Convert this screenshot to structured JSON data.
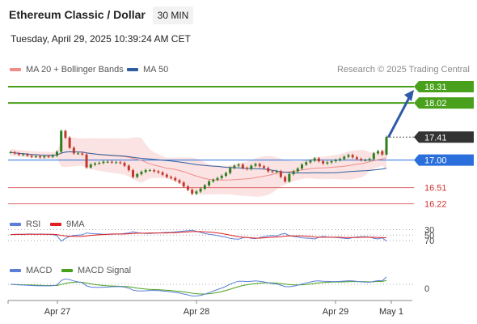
{
  "header": {
    "title": "Ethereum Classic / Dollar",
    "timeframe": "30 MIN",
    "datetime": "Tuesday, April 29, 2025 10:39:24 AM CET"
  },
  "credit": "Research © 2025 Trading Central",
  "legends": {
    "main": [
      {
        "label": "MA 20 + Bollinger Bands",
        "color": "#f08c8c"
      },
      {
        "label": "MA 50",
        "color": "#2f5f9e"
      }
    ],
    "rsi": [
      {
        "label": "RSI",
        "color": "#5b7fd6"
      },
      {
        "label": "9MA",
        "color": "#e02020"
      }
    ],
    "macd": [
      {
        "label": "MACD",
        "color": "#5b7fd6"
      },
      {
        "label": "MACD Signal",
        "color": "#49a01c"
      }
    ]
  },
  "colors": {
    "up": "#2e7d1e",
    "down": "#c0392b",
    "green_level": "#49a01c",
    "red_level": "#e06a6a",
    "current_price": "#333333",
    "pivot": "#2a6fdb",
    "arrow": "#2f5aa8",
    "band_fill": "#fbe0e0"
  },
  "chart_data": [
    {
      "type": "candlestick",
      "title": "Ethereum Classic / Dollar",
      "ylim": [
        16.0,
        18.5
      ],
      "x_tick_labels": [
        "Apr 27",
        "Apr 28",
        "Apr 29",
        "May 1"
      ],
      "current_price": 17.41,
      "pivot": 17.0,
      "resistances": [
        18.31,
        18.02
      ],
      "supports": [
        16.51,
        16.22
      ],
      "close": [
        17.14,
        17.12,
        17.1,
        17.1,
        17.08,
        17.06,
        17.07,
        17.05,
        17.07,
        17.06,
        17.08,
        17.15,
        17.52,
        17.4,
        17.22,
        17.12,
        17.12,
        17.1,
        16.87,
        16.92,
        16.94,
        16.95,
        16.97,
        16.97,
        16.96,
        16.96,
        16.95,
        16.9,
        16.82,
        16.7,
        16.75,
        16.79,
        16.82,
        16.82,
        16.8,
        16.78,
        16.74,
        16.7,
        16.68,
        16.64,
        16.6,
        16.53,
        16.47,
        16.4,
        16.44,
        16.49,
        16.55,
        16.62,
        16.65,
        16.68,
        16.72,
        16.77,
        16.86,
        16.9,
        16.92,
        16.86,
        16.84,
        16.9,
        16.93,
        16.89,
        16.86,
        16.8,
        16.79,
        16.8,
        16.7,
        16.62,
        16.75,
        16.8,
        16.85,
        16.92,
        16.96,
        16.99,
        17.03,
        16.98,
        16.94,
        16.96,
        16.98,
        17.0,
        17.02,
        17.06,
        17.09,
        17.05,
        17.02,
        17.0,
        17.0,
        17.02,
        17.12,
        17.16,
        17.1,
        17.41
      ]
    },
    {
      "type": "line",
      "name": "RSI",
      "ylim": [
        30,
        70
      ],
      "levels": [
        70,
        50,
        30
      ],
      "series": [
        {
          "name": "RSI",
          "values": [
            48,
            47,
            47,
            48,
            46,
            46,
            47,
            46,
            47,
            47,
            48,
            52,
            72,
            62,
            55,
            51,
            50,
            49,
            42,
            44,
            45,
            46,
            47,
            47,
            47,
            46,
            46,
            44,
            42,
            38,
            41,
            43,
            44,
            44,
            43,
            42,
            41,
            40,
            40,
            38,
            37,
            35,
            34,
            32,
            36,
            40,
            44,
            47,
            49,
            52,
            55,
            58,
            62,
            64,
            65,
            60,
            58,
            62,
            63,
            59,
            56,
            53,
            52,
            53,
            47,
            44,
            52,
            55,
            57,
            60,
            61,
            62,
            64,
            58,
            55,
            57,
            58,
            59,
            60,
            62,
            63,
            59,
            57,
            56,
            56,
            57,
            62,
            64,
            60,
            72
          ]
        },
        {
          "name": "9MA",
          "values": [
            48,
            48,
            47,
            47,
            47,
            47,
            47,
            47,
            47,
            47,
            47,
            48,
            51,
            53,
            54,
            55,
            55,
            55,
            53,
            51,
            50,
            49,
            48,
            47,
            46,
            46,
            46,
            46,
            45,
            44,
            43,
            43,
            43,
            42,
            42,
            42,
            42,
            42,
            41,
            41,
            40,
            39,
            38,
            37,
            37,
            37,
            38,
            39,
            40,
            42,
            44,
            47,
            50,
            53,
            56,
            58,
            59,
            60,
            61,
            61,
            60,
            59,
            58,
            57,
            56,
            54,
            53,
            53,
            53,
            53,
            54,
            55,
            57,
            58,
            58,
            58,
            58,
            58,
            58,
            59,
            59,
            59,
            59,
            58,
            58,
            58,
            58,
            59,
            59,
            60
          ]
        }
      ]
    },
    {
      "type": "line",
      "name": "MACD",
      "levels": [
        0
      ],
      "series": [
        {
          "name": "MACD",
          "values": [
            0.0,
            -0.002,
            -0.004,
            -0.005,
            -0.007,
            -0.008,
            -0.009,
            -0.01,
            -0.01,
            -0.01,
            -0.009,
            -0.005,
            0.025,
            0.035,
            0.03,
            0.022,
            0.016,
            0.01,
            -0.01,
            -0.018,
            -0.02,
            -0.02,
            -0.019,
            -0.018,
            -0.016,
            -0.015,
            -0.015,
            -0.018,
            -0.025,
            -0.038,
            -0.042,
            -0.043,
            -0.042,
            -0.04,
            -0.04,
            -0.041,
            -0.043,
            -0.046,
            -0.049,
            -0.053,
            -0.057,
            -0.063,
            -0.069,
            -0.076,
            -0.076,
            -0.072,
            -0.064,
            -0.054,
            -0.044,
            -0.034,
            -0.024,
            -0.013,
            0.001,
            0.012,
            0.02,
            0.02,
            0.018,
            0.02,
            0.022,
            0.02,
            0.016,
            0.01,
            0.005,
            0.002,
            -0.006,
            -0.015,
            -0.016,
            -0.012,
            -0.006,
            0.002,
            0.009,
            0.015,
            0.021,
            0.022,
            0.02,
            0.019,
            0.018,
            0.018,
            0.019,
            0.021,
            0.023,
            0.022,
            0.019,
            0.016,
            0.014,
            0.013,
            0.019,
            0.024,
            0.022,
            0.048
          ]
        },
        {
          "name": "MACD Signal",
          "values": [
            0.0,
            -0.001,
            -0.002,
            -0.003,
            -0.004,
            -0.005,
            -0.006,
            -0.007,
            -0.008,
            -0.008,
            -0.008,
            -0.008,
            -0.001,
            0.006,
            0.011,
            0.013,
            0.014,
            0.013,
            0.008,
            0.003,
            -0.002,
            -0.005,
            -0.008,
            -0.01,
            -0.011,
            -0.012,
            -0.013,
            -0.014,
            -0.016,
            -0.02,
            -0.025,
            -0.028,
            -0.031,
            -0.033,
            -0.034,
            -0.035,
            -0.037,
            -0.039,
            -0.041,
            -0.043,
            -0.046,
            -0.049,
            -0.053,
            -0.058,
            -0.061,
            -0.063,
            -0.063,
            -0.061,
            -0.058,
            -0.053,
            -0.047,
            -0.04,
            -0.032,
            -0.023,
            -0.015,
            -0.008,
            -0.003,
            0.001,
            0.005,
            0.008,
            0.009,
            0.01,
            0.009,
            0.008,
            0.005,
            0.001,
            -0.002,
            -0.004,
            -0.004,
            -0.003,
            -0.001,
            0.002,
            0.006,
            0.009,
            0.011,
            0.013,
            0.014,
            0.015,
            0.015,
            0.016,
            0.017,
            0.018,
            0.018,
            0.018,
            0.017,
            0.016,
            0.017,
            0.018,
            0.019,
            0.024
          ]
        }
      ]
    }
  ]
}
